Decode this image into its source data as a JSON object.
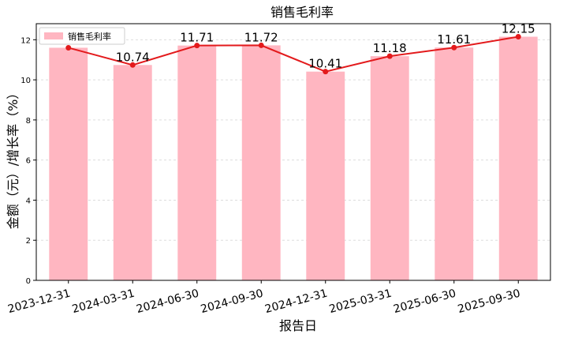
{
  "chart_data": {
    "type": "bar",
    "title": "销售毛利率",
    "xlabel": "报告日",
    "ylabel": "金额（元）/增长率（%）",
    "categories": [
      "2023-12-31",
      "2024-03-31",
      "2024-06-30",
      "2024-09-30",
      "2024-12-31",
      "2025-03-31",
      "2025-06-30",
      "2025-09-30"
    ],
    "series": [
      {
        "name": "销售毛利率",
        "kind": "bar",
        "values": [
          11.6,
          10.74,
          11.71,
          11.72,
          10.41,
          11.18,
          11.61,
          12.15
        ]
      },
      {
        "kind": "line",
        "values": [
          11.6,
          10.74,
          11.71,
          11.72,
          10.41,
          11.18,
          11.61,
          12.15
        ]
      }
    ],
    "data_labels": [
      "",
      "10.74",
      "11.71",
      "11.72",
      "10.41",
      "11.18",
      "11.61",
      "12.15"
    ],
    "yticks": [
      0,
      2,
      4,
      6,
      8,
      10,
      12
    ],
    "ylim": [
      0,
      12.8
    ],
    "grid": true,
    "legend_position": "top-left",
    "colors": {
      "bar": "#ffb6c1",
      "line": "#e31a1c",
      "grid": "#dddddd"
    }
  }
}
